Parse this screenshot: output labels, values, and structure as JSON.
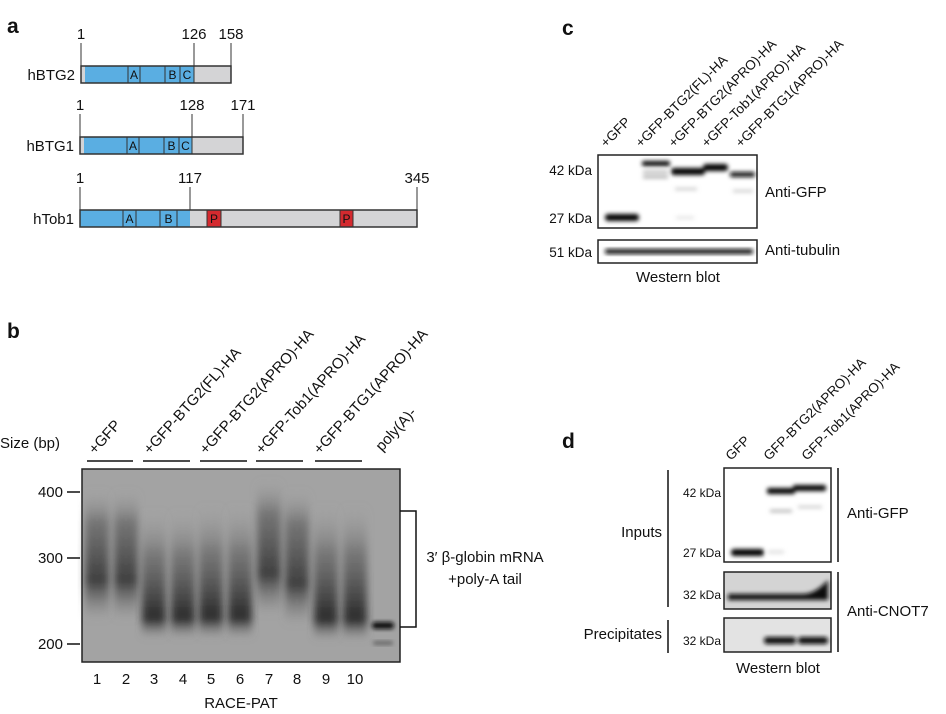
{
  "panel_a": {
    "label": "a",
    "proteins": [
      {
        "name": "hBTG2",
        "start": "1",
        "domain_end": "126",
        "end": "158",
        "boxes": [
          "A",
          "B",
          "C"
        ]
      },
      {
        "name": "hBTG1",
        "start": "1",
        "domain_end": "128",
        "end": "171",
        "boxes": [
          "A",
          "B",
          "C"
        ]
      },
      {
        "name": "hTob1",
        "start": "1",
        "domain_end": "117",
        "end": "345",
        "boxes": [
          "A",
          "B"
        ],
        "motifs": [
          "P",
          "P"
        ]
      }
    ],
    "colors": {
      "domain": "#5aaee2",
      "tail": "#d4d4d6",
      "motif": "#d42a2f"
    }
  },
  "panel_b": {
    "label": "b",
    "size_label": "Size (bp)",
    "size_ticks": [
      "400",
      "300",
      "200"
    ],
    "groups": [
      "+GFP",
      "+GFP-BTG2(FL)-HA",
      "+GFP-BTG2(APRO)-HA",
      "+GFP-Tob1(APRO)-HA",
      "+GFP-BTG1(APRO)-HA",
      "poly(A)-"
    ],
    "lanes": [
      "1",
      "2",
      "3",
      "4",
      "5",
      "6",
      "7",
      "8",
      "9",
      "10"
    ],
    "xlabel": "RACE-PAT",
    "bracket_line1": "3′ β-globin mRNA",
    "bracket_line2": "+poly-A tail"
  },
  "panel_c": {
    "label": "c",
    "lanes": [
      "+GFP",
      "+GFP-BTG2(FL)-HA",
      "+GFP-BTG2(APRO)-HA",
      "+GFP-Tob1(APRO)-HA",
      "+GFP-BTG1(APRO)-HA"
    ],
    "markers": [
      "42 kDa",
      "27 kDa",
      "51 kDa"
    ],
    "antibodies": [
      "Anti-GFP",
      "Anti-tubulin"
    ],
    "caption": "Western blot"
  },
  "panel_d": {
    "label": "d",
    "lanes": [
      "GFP",
      "GFP-BTG2(APRO)-HA",
      "GFP-Tob1(APRO)-HA"
    ],
    "markers": [
      "42 kDa",
      "27 kDa",
      "32 kDa",
      "32 kDa"
    ],
    "sections": [
      "Inputs",
      "Precipitates"
    ],
    "antibodies": [
      "Anti-GFP",
      "Anti-CNOT7"
    ],
    "caption": "Western blot"
  }
}
